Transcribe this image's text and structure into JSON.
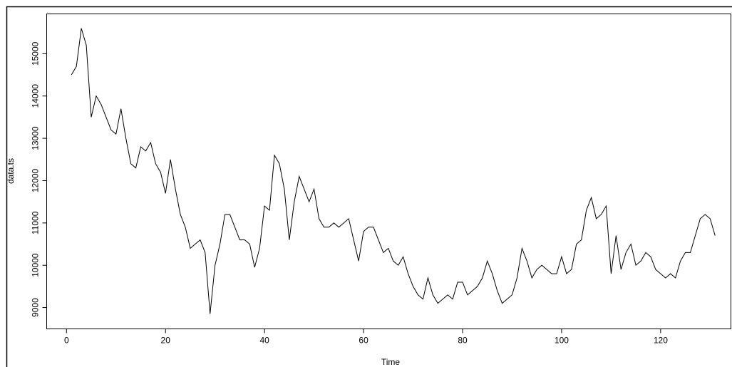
{
  "chart_data": {
    "type": "line",
    "xlabel": "Time",
    "ylabel": "data.ts",
    "x": [
      1,
      2,
      3,
      4,
      5,
      6,
      7,
      8,
      9,
      10,
      11,
      12,
      13,
      14,
      15,
      16,
      17,
      18,
      19,
      20,
      21,
      22,
      23,
      24,
      25,
      26,
      27,
      28,
      29,
      30,
      31,
      32,
      33,
      34,
      35,
      36,
      37,
      38,
      39,
      40,
      41,
      42,
      43,
      44,
      45,
      46,
      47,
      48,
      49,
      50,
      51,
      52,
      53,
      54,
      55,
      56,
      57,
      58,
      59,
      60,
      61,
      62,
      63,
      64,
      65,
      66,
      67,
      68,
      69,
      70,
      71,
      72,
      73,
      74,
      75,
      76,
      77,
      78,
      79,
      80,
      81,
      82,
      83,
      84,
      85,
      86,
      87,
      88,
      89,
      90,
      91,
      92,
      93,
      94,
      95,
      96,
      97,
      98,
      99,
      100,
      101,
      102,
      103,
      104,
      105,
      106,
      107,
      108,
      109,
      110,
      111,
      112,
      113,
      114,
      115,
      116,
      117,
      118,
      119,
      120,
      121,
      122,
      123,
      124,
      125,
      126,
      127,
      128,
      129,
      130,
      131
    ],
    "series": [
      {
        "name": "data.ts",
        "color": "#000000",
        "values": [
          14500,
          14700,
          15600,
          15200,
          13500,
          14000,
          13800,
          13500,
          13200,
          13100,
          13700,
          13000,
          12400,
          12300,
          12800,
          12700,
          12900,
          12400,
          12200,
          11700,
          12500,
          11800,
          11200,
          10900,
          10400,
          10500,
          10600,
          10300,
          8850,
          10000,
          10500,
          11200,
          11200,
          10900,
          10600,
          10600,
          10500,
          9950,
          10400,
          11400,
          11300,
          12600,
          12400,
          11800,
          10600,
          11500,
          12100,
          11800,
          11500,
          11800,
          11100,
          10900,
          10900,
          11000,
          10900,
          11000,
          11100,
          10600,
          10100,
          10800,
          10900,
          10900,
          10600,
          10300,
          10400,
          10100,
          10000,
          10200,
          9800,
          9500,
          9300,
          9200,
          9700,
          9300,
          9100,
          9200,
          9300,
          9200,
          9600,
          9600,
          9300,
          9400,
          9500,
          9700,
          10100,
          9800,
          9400,
          9100,
          9200,
          9300,
          9700,
          10400,
          10100,
          9700,
          9900,
          10000,
          9900,
          9800,
          9800,
          10200,
          9800,
          9900,
          10500,
          10600,
          11300,
          11600,
          11100,
          11200,
          11400,
          9800,
          10700,
          9900,
          10300,
          10500,
          10000,
          10100,
          10300,
          10200,
          9900,
          9800,
          9700,
          9800,
          9700,
          10100,
          10300,
          10300,
          10700,
          11100,
          11200,
          11100,
          10700
        ]
      }
    ],
    "xlim": [
      -4,
      134.2
    ],
    "ylim": [
      8496,
      15941
    ],
    "xticks": [
      0,
      20,
      40,
      60,
      80,
      100,
      120
    ],
    "yticks": [
      9000,
      10000,
      11000,
      12000,
      13000,
      14000,
      15000
    ]
  }
}
